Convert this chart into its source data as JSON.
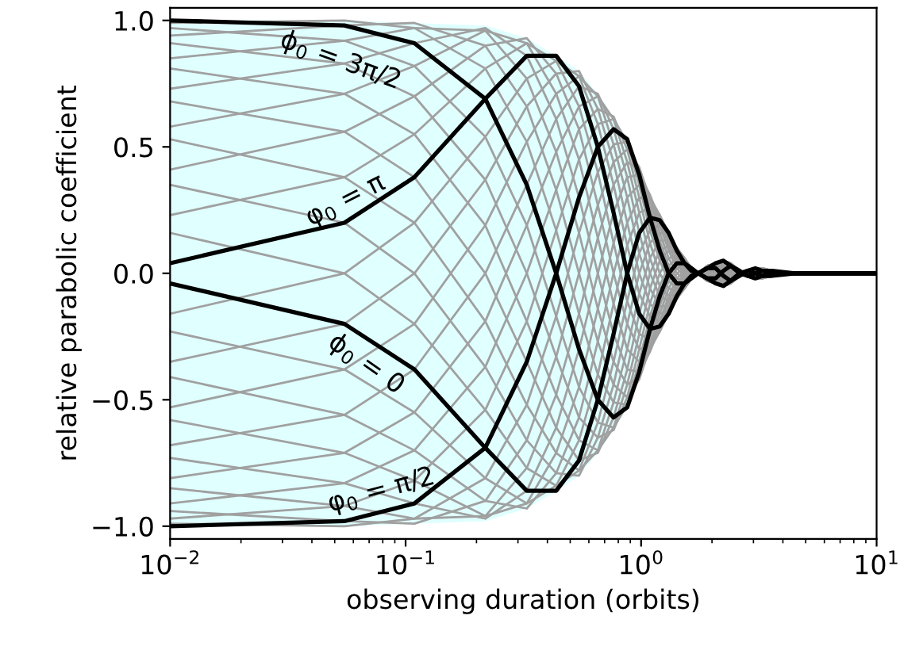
{
  "chart_data": {
    "type": "line",
    "xlabel": "observing duration (orbits)",
    "ylabel": "relative parabolic coefficient",
    "log": "x",
    "xlim": [
      0.01,
      10
    ],
    "ylim": [
      -1.05,
      1.05
    ],
    "xticks": [
      {
        "value": 0.01,
        "label": "10$^{−2}$"
      },
      {
        "value": 0.1,
        "label": "10$^{−1}$"
      },
      {
        "value": 1,
        "label": "10$^{0}$"
      },
      {
        "value": 10,
        "label": "10$^{1}$"
      }
    ],
    "yticks": [
      {
        "value": -1.0,
        "label": "−1.0"
      },
      {
        "value": -0.5,
        "label": "−0.5"
      },
      {
        "value": 0.0,
        "label": "0.0"
      },
      {
        "value": 0.5,
        "label": "0.5"
      },
      {
        "value": 1.0,
        "label": "1.0"
      }
    ],
    "x": [
      0.01,
      0.055,
      0.109,
      0.218,
      0.327,
      0.436,
      0.545,
      0.655,
      0.764,
      0.873,
      0.982,
      1.091,
      1.2,
      1.309,
      1.418,
      1.528,
      1.636,
      1.746,
      1.909,
      2.073,
      2.237,
      2.4,
      2.619,
      2.837,
      3.055,
      3.273,
      3.601,
      4.5,
      10
    ],
    "series": [
      {
        "type": "area",
        "color": "#e0ffff",
        "values": [
          1,
          1,
          0.99,
          0.98,
          0.93,
          0.86,
          0.8,
          0.71,
          0.62,
          0.53,
          0.42,
          0.31,
          0.23,
          0.16,
          0.1,
          0.06,
          0.02,
          0,
          0.03,
          0.04,
          0.05,
          0.04,
          0.01,
          0.01,
          0.02,
          0.02,
          0.01,
          0,
          0
        ]
      },
      {
        "type": "area",
        "color": "#e0ffff",
        "values": [
          -1,
          -1,
          -0.99,
          -0.98,
          -0.93,
          -0.86,
          -0.8,
          -0.71,
          -0.62,
          -0.53,
          -0.42,
          -0.31,
          -0.23,
          -0.16,
          -0.1,
          -0.06,
          -0.02,
          0,
          -0.03,
          -0.04,
          -0.05,
          -0.04,
          -0.01,
          -0.01,
          -0.02,
          -0.02,
          -0.01,
          0,
          0
        ]
      },
      {
        "color": "#a0a0a0",
        "values": [
          -0.23,
          -0.38,
          -0.55,
          -0.81,
          -0.91,
          -0.84,
          -0.66,
          -0.4,
          -0.12,
          0.11,
          0.24,
          0.26,
          0.23,
          0.16,
          0.08,
          0.03,
          0,
          0,
          0.02,
          0.04,
          0.05,
          0.02,
          0,
          0.01,
          0.02,
          0.01,
          -0.01,
          0,
          0
        ]
      },
      {
        "color": "#a0a0a0",
        "values": [
          -0.41,
          -0.56,
          -0.7,
          -0.9,
          -0.93,
          -0.79,
          -0.57,
          -0.27,
          0,
          0.2,
          0.3,
          0.29,
          0.23,
          0.15,
          0.07,
          0.02,
          0,
          0,
          0.02,
          0.04,
          0.04,
          0.02,
          0,
          0.01,
          0.02,
          0.01,
          -0.01,
          0,
          0
        ]
      },
      {
        "color": "#a0a0a0",
        "values": [
          -0.58,
          -0.71,
          -0.82,
          -0.96,
          -0.91,
          -0.71,
          -0.45,
          -0.14,
          0.12,
          0.3,
          0.35,
          0.3,
          0.23,
          0.13,
          0.06,
          0.01,
          0,
          0,
          0.03,
          0.04,
          0.04,
          0.01,
          -0.01,
          0.01,
          0.02,
          0,
          -0.01,
          0,
          0
        ]
      },
      {
        "color": "#a0a0a0",
        "values": [
          -0.73,
          -0.83,
          -0.91,
          -0.97,
          -0.86,
          -0.61,
          -0.3,
          0,
          0.24,
          0.38,
          0.39,
          0.31,
          0.21,
          0.11,
          0.04,
          0,
          -0.01,
          0,
          0.03,
          0.04,
          0.03,
          0,
          -0.01,
          0.01,
          0.01,
          0,
          -0.01,
          0,
          0
        ]
      },
      {
        "color": "#a0a0a0",
        "values": [
          -0.85,
          -0.92,
          -0.97,
          -0.96,
          -0.77,
          -0.48,
          -0.16,
          0.14,
          0.35,
          0.44,
          0.41,
          0.3,
          0.19,
          0.09,
          0.02,
          -0.01,
          -0.01,
          0,
          0.03,
          0.03,
          0.02,
          -0.01,
          -0.01,
          0.01,
          0.01,
          0,
          -0.01,
          0,
          0
        ]
      },
      {
        "color": "#a0a0a0",
        "values": [
          -0.94,
          -0.98,
          -0.99,
          -0.9,
          -0.66,
          -0.33,
          0,
          0.27,
          0.44,
          0.49,
          0.42,
          0.29,
          0.16,
          0.06,
          0,
          -0.02,
          -0.01,
          0,
          0.03,
          0.03,
          0.01,
          -0.02,
          -0.01,
          0.01,
          0.01,
          -0.01,
          -0.01,
          0,
          0
        ]
      },
      {
        "color": "#a0a0a0",
        "values": [
          -0.99,
          -1.0,
          -0.97,
          -0.81,
          -0.52,
          -0.17,
          0.16,
          0.4,
          0.51,
          0.52,
          0.41,
          0.26,
          0.13,
          0.03,
          -0.02,
          -0.03,
          -0.02,
          0,
          0.03,
          0.02,
          0,
          -0.02,
          -0.01,
          0.01,
          0,
          -0.01,
          -0.01,
          0,
          0
        ]
      },
      {
        "color": "#a0a0a0",
        "values": [
          -0.97,
          -0.92,
          -0.82,
          -0.54,
          -0.19,
          0.17,
          0.45,
          0.59,
          0.61,
          0.52,
          0.35,
          0.17,
          0.05,
          -0.03,
          -0.06,
          -0.05,
          -0.02,
          0,
          0.02,
          0.01,
          -0.02,
          -0.03,
          -0.01,
          0.01,
          0,
          -0.02,
          -0.01,
          0,
          0
        ]
      },
      {
        "color": "#a0a0a0",
        "values": [
          -0.91,
          -0.83,
          -0.7,
          -0.37,
          0,
          0.33,
          0.57,
          0.65,
          0.62,
          0.49,
          0.3,
          0.12,
          0,
          -0.06,
          -0.07,
          -0.06,
          -0.02,
          0,
          0.02,
          0,
          -0.03,
          -0.04,
          -0.01,
          0,
          -0.01,
          -0.02,
          -0.01,
          0,
          0
        ]
      },
      {
        "color": "#a0a0a0",
        "values": [
          -0.81,
          -0.71,
          -0.55,
          -0.19,
          0.19,
          0.48,
          0.66,
          0.7,
          0.61,
          0.44,
          0.24,
          0.06,
          -0.05,
          -0.09,
          -0.08,
          -0.06,
          -0.02,
          0,
          0.01,
          -0.01,
          -0.04,
          -0.04,
          -0.01,
          0,
          -0.01,
          -0.02,
          -0.01,
          0,
          0
        ]
      },
      {
        "color": "#a0a0a0",
        "values": [
          -0.68,
          -0.56,
          -0.38,
          0,
          0.35,
          0.61,
          0.74,
          0.71,
          0.57,
          0.38,
          0.16,
          0,
          -0.09,
          -0.11,
          -0.09,
          -0.06,
          -0.02,
          0,
          0.01,
          -0.02,
          -0.04,
          -0.04,
          -0.01,
          0,
          -0.01,
          -0.02,
          0,
          0,
          0
        ]
      },
      {
        "color": "#a0a0a0",
        "values": [
          -0.53,
          -0.38,
          -0.2,
          0.19,
          0.52,
          0.71,
          0.78,
          0.7,
          0.51,
          0.3,
          0.08,
          -0.06,
          -0.13,
          -0.13,
          -0.1,
          -0.06,
          -0.02,
          0,
          0,
          -0.02,
          -0.05,
          -0.04,
          -0.01,
          0,
          -0.02,
          -0.02,
          0,
          0,
          0
        ]
      },
      {
        "color": "#a0a0a0",
        "values": [
          -0.35,
          -0.2,
          0,
          0.37,
          0.66,
          0.79,
          0.8,
          0.65,
          0.44,
          0.2,
          0,
          -0.12,
          -0.16,
          -0.15,
          -0.1,
          -0.06,
          -0.01,
          0,
          -0.01,
          -0.03,
          -0.05,
          -0.04,
          0,
          0,
          -0.02,
          -0.02,
          0,
          0,
          0
        ]
      },
      {
        "color": "#a0a0a0",
        "values": [
          -0.16,
          0,
          0.2,
          0.54,
          0.77,
          0.84,
          0.78,
          0.59,
          0.35,
          0.11,
          -0.08,
          -0.17,
          -0.19,
          -0.16,
          -0.1,
          -0.05,
          -0.01,
          0,
          -0.01,
          -0.03,
          -0.05,
          -0.03,
          0,
          -0.01,
          -0.02,
          -0.02,
          0,
          0,
          0
        ]
      },
      {
        "color": "#a0a0a0",
        "values": [
          0.23,
          0.38,
          0.55,
          0.81,
          0.91,
          0.84,
          0.66,
          0.4,
          0.12,
          -0.11,
          -0.24,
          -0.26,
          -0.23,
          -0.16,
          -0.08,
          -0.03,
          0,
          0,
          -0.02,
          -0.04,
          -0.05,
          -0.02,
          0,
          -0.01,
          -0.02,
          -0.01,
          0.01,
          0,
          0
        ]
      },
      {
        "color": "#a0a0a0",
        "values": [
          0.41,
          0.56,
          0.7,
          0.9,
          0.93,
          0.79,
          0.57,
          0.27,
          0,
          -0.2,
          -0.3,
          -0.29,
          -0.23,
          -0.15,
          -0.07,
          -0.02,
          0,
          0,
          -0.02,
          -0.04,
          -0.04,
          -0.02,
          0,
          -0.01,
          -0.02,
          -0.01,
          0.01,
          0,
          0
        ]
      },
      {
        "color": "#a0a0a0",
        "values": [
          0.58,
          0.71,
          0.82,
          0.96,
          0.91,
          0.71,
          0.45,
          0.14,
          -0.12,
          -0.3,
          -0.35,
          -0.3,
          -0.23,
          -0.13,
          -0.06,
          -0.01,
          0,
          0,
          -0.03,
          -0.04,
          -0.04,
          -0.01,
          0.01,
          -0.01,
          -0.02,
          0,
          0.01,
          0,
          0
        ]
      },
      {
        "color": "#a0a0a0",
        "values": [
          0.73,
          0.83,
          0.91,
          0.97,
          0.86,
          0.61,
          0.3,
          0,
          -0.24,
          -0.38,
          -0.39,
          -0.31,
          -0.21,
          -0.11,
          -0.04,
          0,
          0.01,
          0,
          -0.03,
          -0.04,
          -0.03,
          0,
          0.01,
          -0.01,
          -0.01,
          0,
          0.01,
          0,
          0
        ]
      },
      {
        "color": "#a0a0a0",
        "values": [
          0.85,
          0.92,
          0.97,
          0.96,
          0.77,
          0.48,
          0.16,
          -0.14,
          -0.35,
          -0.44,
          -0.41,
          -0.3,
          -0.19,
          -0.09,
          -0.02,
          0.01,
          0.01,
          0,
          -0.03,
          -0.03,
          -0.02,
          0.01,
          0.01,
          -0.01,
          -0.01,
          0,
          0.01,
          0,
          0
        ]
      },
      {
        "color": "#a0a0a0",
        "values": [
          0.94,
          0.98,
          0.99,
          0.9,
          0.66,
          0.33,
          0,
          -0.27,
          -0.44,
          -0.49,
          -0.42,
          -0.29,
          -0.16,
          -0.06,
          0,
          0.02,
          0.01,
          0,
          -0.03,
          -0.03,
          -0.01,
          0.02,
          0.01,
          -0.01,
          -0.01,
          0.01,
          0.01,
          0,
          0
        ]
      },
      {
        "color": "#a0a0a0",
        "values": [
          0.99,
          1.0,
          0.97,
          0.81,
          0.52,
          0.17,
          -0.16,
          -0.4,
          -0.51,
          -0.52,
          -0.41,
          -0.26,
          -0.13,
          -0.03,
          0.02,
          0.03,
          0.02,
          0,
          -0.03,
          -0.02,
          0,
          0.02,
          0.01,
          -0.01,
          0,
          0.01,
          0.01,
          0,
          0
        ]
      },
      {
        "color": "#a0a0a0",
        "values": [
          0.97,
          0.92,
          0.82,
          0.54,
          0.19,
          -0.17,
          -0.45,
          -0.59,
          -0.61,
          -0.52,
          -0.35,
          -0.17,
          -0.05,
          0.03,
          0.06,
          0.05,
          0.02,
          0,
          -0.02,
          -0.01,
          0.02,
          0.03,
          0.01,
          -0.01,
          0,
          0.02,
          0.01,
          0,
          0
        ]
      },
      {
        "color": "#a0a0a0",
        "values": [
          0.91,
          0.83,
          0.7,
          0.37,
          0,
          -0.33,
          -0.57,
          -0.65,
          -0.62,
          -0.49,
          -0.3,
          -0.12,
          0,
          0.06,
          0.07,
          0.06,
          0.02,
          0,
          -0.02,
          0,
          0.03,
          0.04,
          0.01,
          0,
          0.01,
          0.02,
          0.01,
          0,
          0
        ]
      },
      {
        "color": "#a0a0a0",
        "values": [
          0.81,
          0.71,
          0.55,
          0.19,
          -0.19,
          -0.48,
          -0.66,
          -0.7,
          -0.61,
          -0.44,
          -0.24,
          -0.06,
          0.05,
          0.09,
          0.08,
          0.06,
          0.02,
          0,
          -0.01,
          0.01,
          0.04,
          0.04,
          0.01,
          0,
          0.01,
          0.02,
          0.01,
          0,
          0
        ]
      },
      {
        "color": "#a0a0a0",
        "values": [
          0.68,
          0.56,
          0.38,
          0,
          -0.35,
          -0.61,
          -0.74,
          -0.71,
          -0.57,
          -0.38,
          -0.16,
          0,
          0.09,
          0.11,
          0.09,
          0.06,
          0.02,
          0,
          -0.01,
          0.02,
          0.04,
          0.04,
          0.01,
          0,
          0.01,
          0.02,
          0,
          0,
          0
        ]
      },
      {
        "color": "#a0a0a0",
        "values": [
          0.53,
          0.38,
          0.2,
          -0.19,
          -0.52,
          -0.71,
          -0.78,
          -0.7,
          -0.51,
          -0.3,
          -0.08,
          0.06,
          0.13,
          0.13,
          0.1,
          0.06,
          0.02,
          0,
          0,
          0.02,
          0.05,
          0.04,
          0.01,
          0,
          0.02,
          0.02,
          0,
          0,
          0
        ]
      },
      {
        "color": "#a0a0a0",
        "values": [
          0.35,
          0.2,
          0,
          -0.37,
          -0.66,
          -0.79,
          -0.8,
          -0.65,
          -0.44,
          -0.2,
          0,
          0.12,
          0.16,
          0.15,
          0.1,
          0.06,
          0.01,
          0,
          0.01,
          0.03,
          0.05,
          0.04,
          0,
          0,
          0.02,
          0.02,
          0,
          0,
          0
        ]
      },
      {
        "color": "#a0a0a0",
        "values": [
          0.16,
          0,
          -0.2,
          -0.54,
          -0.77,
          -0.84,
          -0.78,
          -0.59,
          -0.35,
          -0.11,
          0.08,
          0.17,
          0.19,
          0.16,
          0.1,
          0.05,
          0.01,
          0,
          0.01,
          0.03,
          0.05,
          0.03,
          0,
          0.01,
          0.02,
          0.02,
          0,
          0,
          0
        ]
      },
      {
        "color": "#000000",
        "values": [
          -0.04,
          -0.2,
          -0.38,
          -0.69,
          -0.86,
          -0.86,
          -0.74,
          -0.5,
          -0.24,
          0,
          0.16,
          0.22,
          0.21,
          0.16,
          0.09,
          0.04,
          0.01,
          0,
          0.02,
          0.04,
          0.05,
          0.03,
          0,
          0.01,
          0.02,
          0.01,
          0,
          0,
          0
        ]
      },
      {
        "color": "#000000",
        "values": [
          -1.0,
          -0.98,
          -0.91,
          -0.69,
          -0.35,
          0,
          0.3,
          0.5,
          0.57,
          0.53,
          0.39,
          0.22,
          0.09,
          0,
          -0.04,
          -0.04,
          -0.02,
          0,
          0.02,
          0.02,
          -0.01,
          -0.03,
          -0.01,
          0.01,
          0,
          -0.01,
          -0.01,
          0,
          0
        ]
      },
      {
        "color": "#000000",
        "values": [
          0.04,
          0.2,
          0.38,
          0.69,
          0.86,
          0.86,
          0.74,
          0.5,
          0.24,
          0,
          -0.16,
          -0.22,
          -0.21,
          -0.16,
          -0.09,
          -0.04,
          -0.01,
          0,
          -0.02,
          -0.04,
          -0.05,
          -0.03,
          0,
          -0.01,
          -0.02,
          -0.01,
          0,
          0,
          0
        ]
      },
      {
        "color": "#000000",
        "values": [
          1.0,
          0.98,
          0.91,
          0.69,
          0.35,
          0,
          -0.3,
          -0.5,
          -0.57,
          -0.53,
          -0.39,
          -0.22,
          -0.09,
          0,
          0.04,
          0.04,
          0.02,
          0,
          -0.02,
          -0.02,
          0.01,
          0.03,
          0.01,
          -0.01,
          0,
          0.01,
          0.01,
          0,
          0
        ]
      }
    ],
    "annotations": [
      {
        "text": "ϕ$_{0}$ = 3π/2",
        "x": 0.053,
        "y": 0.84
      },
      {
        "text": "φ$_{0}$ = π",
        "x": 0.058,
        "y": 0.2
      },
      {
        "text": "ϕ$_{0}$ = 0",
        "x": 0.068,
        "y": -0.36
      },
      {
        "text": "φ$_{0}$ = π/2",
        "x": 0.079,
        "y": -0.86
      }
    ]
  }
}
